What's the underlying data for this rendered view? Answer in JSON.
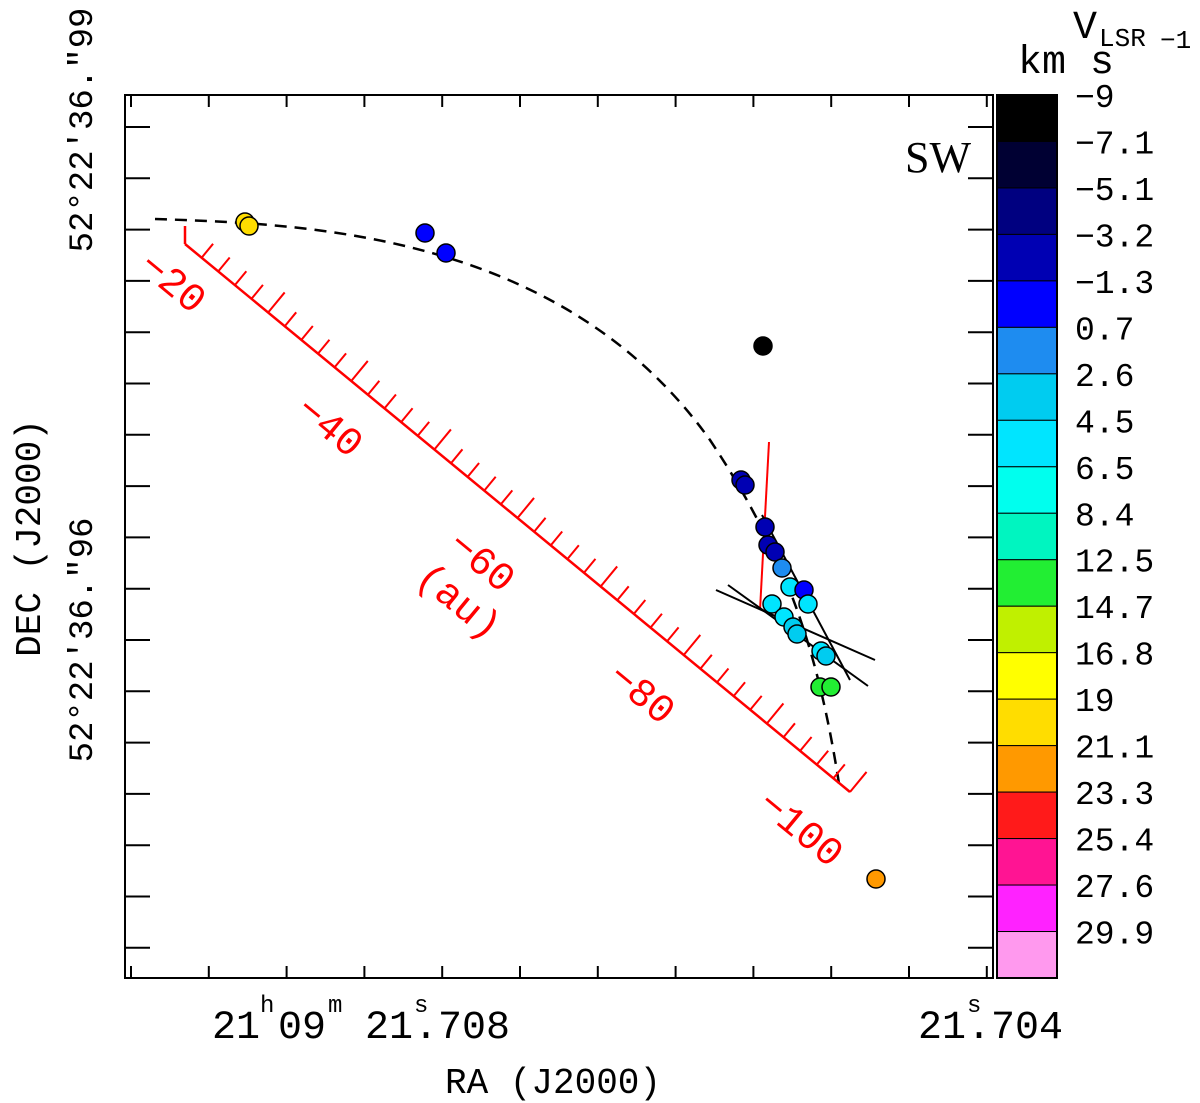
{
  "chart_data": {
    "type": "scatter",
    "panel_label": "SW",
    "x_axis": {
      "title": "RA (J2000)",
      "ticks": [
        {
          "h": "21",
          "h_sup": "h",
          "m": "09",
          "m_sup": "m",
          "s": "21",
          "s_sup": "s",
          "frac": ".708"
        },
        {
          "s": "21",
          "s_sup": "s",
          "frac": ".704"
        }
      ]
    },
    "y_axis": {
      "title": "DEC (J2000)",
      "ticks": [
        {
          "label": "52°22′36.″99"
        },
        {
          "label": "52°22′36.″96"
        }
      ]
    },
    "colorbar": {
      "title_main": "V",
      "title_sub": "LSR",
      "title_unit": "km s",
      "title_exp": "−1",
      "levels": [
        {
          "label": "−9",
          "color": "#000000"
        },
        {
          "label": "−7.1",
          "color": "#000033"
        },
        {
          "label": "−5.1",
          "color": "#000080"
        },
        {
          "label": "−3.2",
          "color": "#0000b3"
        },
        {
          "label": "−1.3",
          "color": "#0000ff"
        },
        {
          "label": "0.7",
          "color": "#1e8cf0"
        },
        {
          "label": "2.6",
          "color": "#00ccf0"
        },
        {
          "label": "4.5",
          "color": "#00e5ff"
        },
        {
          "label": "6.5",
          "color": "#00ffee"
        },
        {
          "label": "8.4",
          "color": "#00f5c0"
        },
        {
          "label": "12.5",
          "color": "#22ee33"
        },
        {
          "label": "14.7",
          "color": "#c0f000"
        },
        {
          "label": "16.8",
          "color": "#ffff00"
        },
        {
          "label": "19",
          "color": "#ffdd00"
        },
        {
          "label": "21.1",
          "color": "#ff9900"
        },
        {
          "label": "23.3",
          "color": "#ff1a1a"
        },
        {
          "label": "25.4",
          "color": "#ff1493"
        },
        {
          "label": "27.6",
          "color": "#ff22ff"
        },
        {
          "label": "29.9",
          "color": "#ff99ee"
        }
      ]
    },
    "distance_scale": {
      "unit_label": "(au)",
      "labels": [
        "−20",
        "−40",
        "−60",
        "−80",
        "−100"
      ]
    },
    "points": [
      {
        "v": 17.5,
        "color": "#ffdd00"
      },
      {
        "v": 17.5,
        "color": "#ffdd00"
      },
      {
        "v": -1.3,
        "color": "#0000ff"
      },
      {
        "v": -1.3,
        "color": "#0000ff"
      },
      {
        "v": -9,
        "color": "#000000"
      },
      {
        "v": -3.2,
        "color": "#0000b3"
      },
      {
        "v": -3.2,
        "color": "#0000b3"
      },
      {
        "v": -3.2,
        "color": "#0000b3"
      },
      {
        "v": -3.2,
        "color": "#0000b3"
      },
      {
        "v": -3.2,
        "color": "#0000b3"
      },
      {
        "v": 0.7,
        "color": "#1e8cf0"
      },
      {
        "v": 4.5,
        "color": "#00e5ff"
      },
      {
        "v": -1.3,
        "color": "#0000ff"
      },
      {
        "v": 4.5,
        "color": "#00e5ff"
      },
      {
        "v": 4.5,
        "color": "#00e5ff"
      },
      {
        "v": 4.5,
        "color": "#00e5ff"
      },
      {
        "v": 2.6,
        "color": "#00ccf0"
      },
      {
        "v": 2.6,
        "color": "#00ccf0"
      },
      {
        "v": 4.5,
        "color": "#00e5ff"
      },
      {
        "v": 2.6,
        "color": "#00ccf0"
      },
      {
        "v": 12.5,
        "color": "#22ee33"
      },
      {
        "v": 12.5,
        "color": "#22ee33"
      },
      {
        "v": 21.1,
        "color": "#ff9900"
      }
    ]
  }
}
